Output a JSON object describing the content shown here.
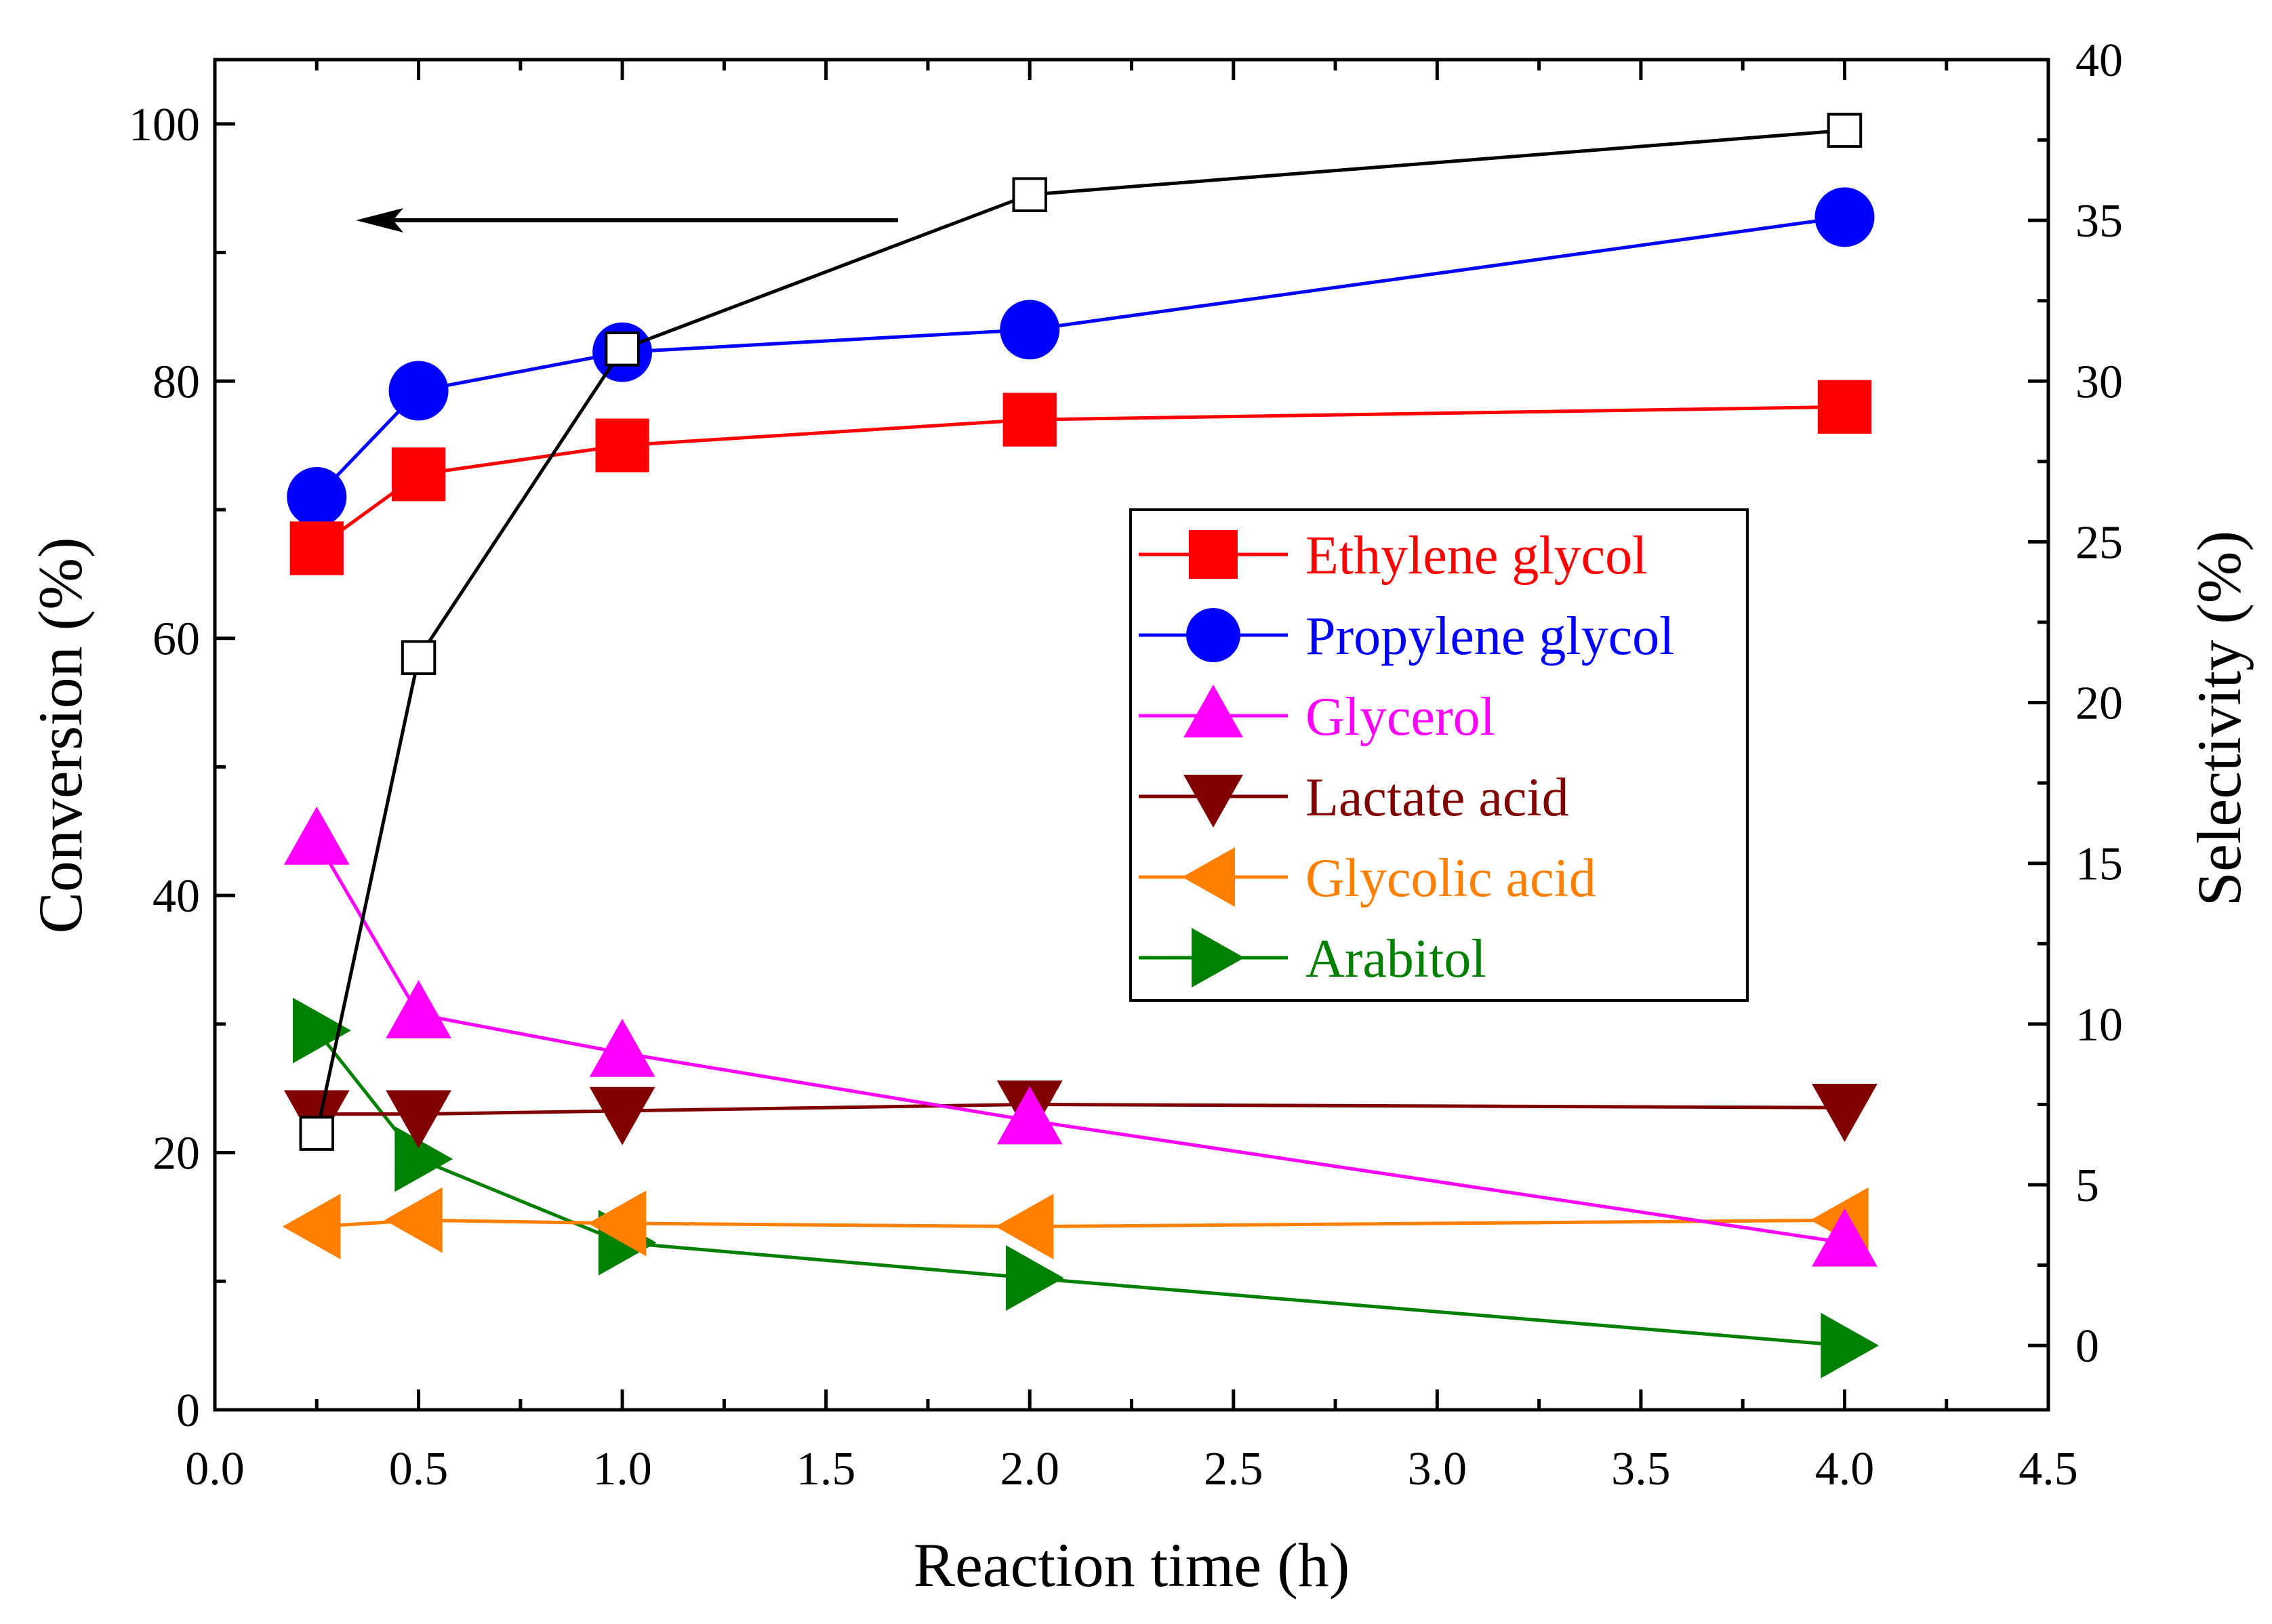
{
  "chart_data": {
    "type": "line",
    "title": "",
    "xlabel": "Reaction time (h)",
    "ylabel_left": "Conversion (%)",
    "ylabel_right": "Selectivity (%)",
    "xlim": [
      0,
      4.5
    ],
    "ylim_left": [
      0,
      105
    ],
    "ylim_right": [
      -2,
      40
    ],
    "x_ticks": [
      "0.0",
      "0.5",
      "1.0",
      "1.5",
      "2.0",
      "2.5",
      "3.0",
      "3.5",
      "4.0",
      "4.5"
    ],
    "y_left_ticks": [
      "0",
      "20",
      "40",
      "60",
      "80",
      "100"
    ],
    "y_right_ticks": [
      "0",
      "5",
      "10",
      "15",
      "20",
      "25",
      "30",
      "35",
      "40"
    ],
    "arrow_annotation": "points to left axis",
    "conversion_series": {
      "name": "Conversion",
      "axis": "left",
      "marker": "open-square",
      "color": "#000000",
      "x": [
        0.25,
        0.5,
        1.0,
        2.0,
        4.0
      ],
      "values": [
        21.5,
        58.5,
        82.5,
        94.5,
        99.5
      ]
    },
    "series": [
      {
        "name": "Ethylene glycol",
        "axis": "right",
        "marker": "square",
        "color": "#ff0000",
        "x": [
          0.25,
          0.5,
          1.0,
          2.0,
          4.0
        ],
        "values": [
          24.8,
          27.1,
          28.0,
          28.8,
          29.2
        ]
      },
      {
        "name": "Propylene glycol",
        "axis": "right",
        "marker": "circle",
        "color": "#0000ff",
        "x": [
          0.25,
          0.5,
          1.0,
          2.0,
          4.0
        ],
        "values": [
          26.4,
          29.7,
          30.9,
          31.6,
          35.1
        ]
      },
      {
        "name": "Glycerol",
        "axis": "right",
        "marker": "triangle-up",
        "color": "#ff00ff",
        "x": [
          0.25,
          0.5,
          1.0,
          2.0,
          4.0
        ],
        "values": [
          15.7,
          10.3,
          9.1,
          7.0,
          3.2
        ]
      },
      {
        "name": "Lactate acid",
        "axis": "right",
        "marker": "triangle-down",
        "color": "#800000",
        "x": [
          0.25,
          0.5,
          1.0,
          2.0,
          4.0
        ],
        "values": [
          7.2,
          7.2,
          7.3,
          7.5,
          7.4
        ]
      },
      {
        "name": "Glycolic acid",
        "axis": "right",
        "marker": "triangle-left",
        "color": "#ff8000",
        "x": [
          0.25,
          0.5,
          1.0,
          2.0,
          4.0
        ],
        "values": [
          3.7,
          3.9,
          3.8,
          3.7,
          3.9
        ]
      },
      {
        "name": "Arabitol",
        "axis": "right",
        "marker": "triangle-right",
        "color": "#008000",
        "x": [
          0.25,
          0.5,
          1.0,
          2.0,
          4.0
        ],
        "values": [
          9.8,
          5.8,
          3.2,
          2.1,
          0.0
        ]
      }
    ]
  }
}
